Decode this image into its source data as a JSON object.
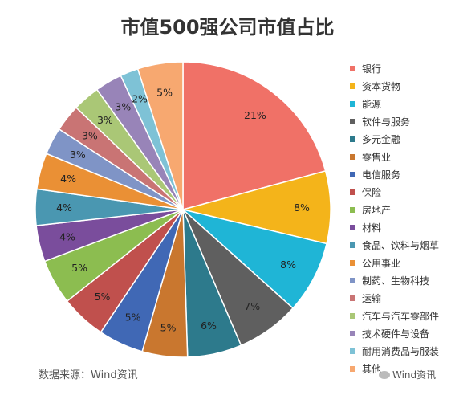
{
  "chart_data": {
    "type": "pie",
    "title": "市值500强公司市值占比",
    "categories": [
      "银行",
      "资本货物",
      "能源",
      "软件与服务",
      "多元金融",
      "零售业",
      "电信服务",
      "保险",
      "房地产",
      "材料",
      "食品、饮料与烟草",
      "公用事业",
      "制药、生物科技",
      "运输",
      "汽车与汽车零部件",
      "技术硬件与设备",
      "耐用消费品与服装",
      "其他"
    ],
    "values": [
      21,
      8,
      8,
      7,
      6,
      5,
      5,
      5,
      5,
      4,
      4,
      4,
      3,
      3,
      3,
      3,
      2,
      5
    ],
    "value_labels": [
      "21%",
      "8%",
      "8%",
      "7%",
      "6%",
      "5%",
      "5%",
      "5%",
      "5%",
      "4%",
      "4%",
      "4%",
      "3%",
      "3%",
      "3%",
      "3%",
      "2%",
      "5%"
    ],
    "colors": [
      "#f07167",
      "#f4b41a",
      "#1fb5d6",
      "#5f5f5f",
      "#2d7a8c",
      "#c9772f",
      "#4068b5",
      "#c0504d",
      "#8cbd50",
      "#7a4d9c",
      "#4a97b1",
      "#ea9035",
      "#7f94c6",
      "#c97474",
      "#aac776",
      "#9884b8",
      "#7ec2d6",
      "#f7a870"
    ],
    "legend_position": "right"
  },
  "footer": {
    "source": "数据来源：Wind资讯",
    "logo_text": "Wind资讯"
  }
}
